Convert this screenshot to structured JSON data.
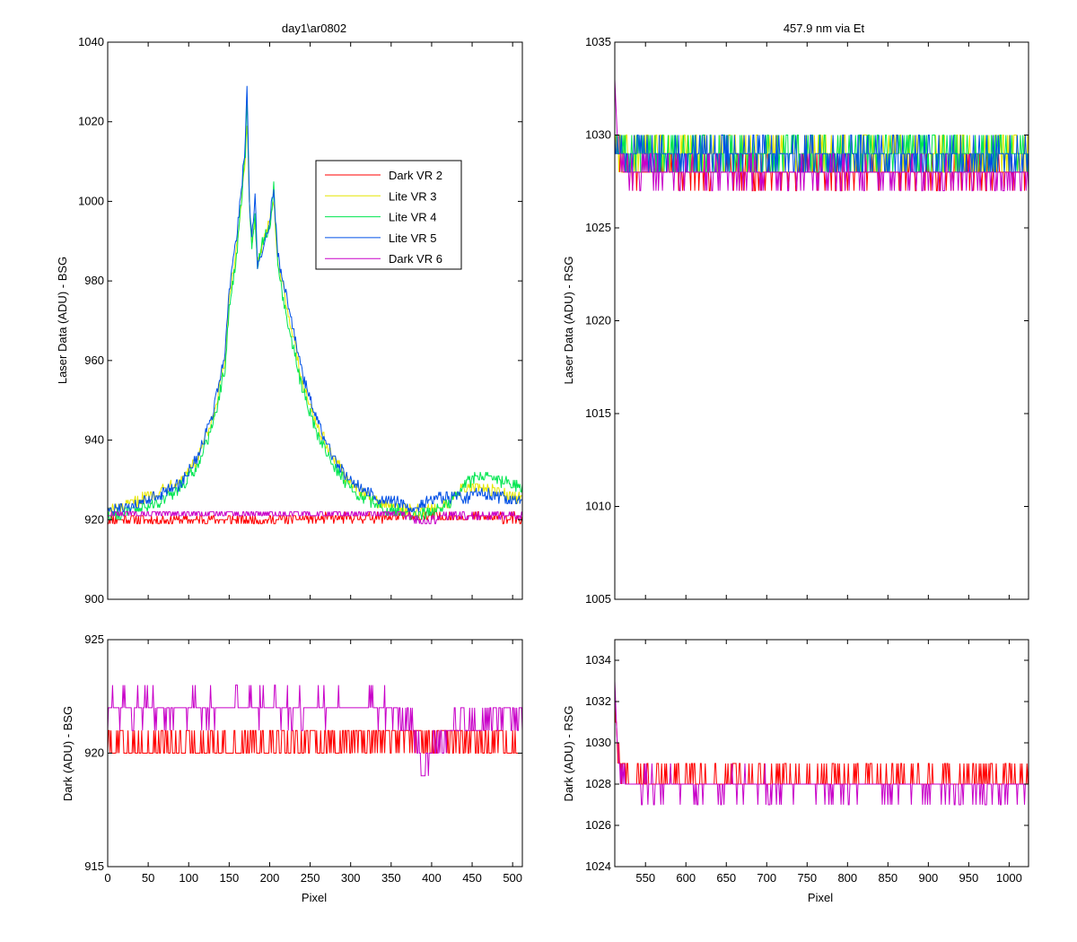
{
  "chart_data": [
    {
      "id": "top_left",
      "type": "line",
      "title": "day1\\ar0802",
      "xlabel": "",
      "ylabel": "Laser Data (ADU) - BSG",
      "xlim": [
        0,
        512
      ],
      "ylim": [
        900,
        1040
      ],
      "xticks": [
        0,
        50,
        100,
        150,
        200,
        250,
        300,
        350,
        400,
        450,
        500
      ],
      "show_xtick_labels": false,
      "yticks": [
        900,
        920,
        940,
        960,
        980,
        1000,
        1020,
        1040
      ],
      "legend": {
        "placement": "top-right",
        "entries": [
          "Dark VR 2",
          "Lite VR 3",
          "Lite VR 4",
          "Lite VR 5",
          "Dark VR 6"
        ],
        "colors": [
          "#ff0000",
          "#e6e600",
          "#00e650",
          "#0050e6",
          "#c800c8"
        ]
      },
      "series": [
        {
          "name": "Dark VR 2",
          "color": "#ff0000",
          "noise": 1.2,
          "x": [
            0,
            100,
            200,
            300,
            400,
            500,
            512
          ],
          "y": [
            920,
            920,
            920,
            920.5,
            920.8,
            920.5,
            920
          ]
        },
        {
          "name": "Lite VR 3",
          "color": "#e6e600",
          "noise": 1.5,
          "x": [
            0,
            30,
            60,
            90,
            110,
            130,
            145,
            150,
            160,
            170,
            172,
            175,
            178,
            182,
            185,
            190,
            200,
            205,
            210,
            220,
            240,
            260,
            280,
            300,
            320,
            340,
            360,
            380,
            400,
            420,
            440,
            460,
            480,
            500,
            512
          ],
          "y": [
            922,
            924,
            927,
            930,
            935,
            945,
            960,
            975,
            990,
            1010,
            1020,
            1000,
            990,
            995,
            985,
            988,
            995,
            1000,
            985,
            975,
            955,
            943,
            935,
            929,
            926,
            924,
            923,
            922,
            923,
            924,
            928,
            928,
            927,
            926,
            925
          ]
        },
        {
          "name": "Lite VR 4",
          "color": "#00e650",
          "noise": 1.5,
          "x": [
            0,
            30,
            60,
            90,
            110,
            130,
            145,
            150,
            160,
            170,
            172,
            175,
            178,
            182,
            185,
            190,
            200,
            205,
            210,
            220,
            240,
            260,
            280,
            300,
            320,
            340,
            360,
            380,
            400,
            420,
            440,
            460,
            480,
            500,
            512
          ],
          "y": [
            921,
            922,
            924,
            928,
            933,
            944,
            958,
            973,
            988,
            1012,
            1025,
            1000,
            988,
            997,
            983,
            990,
            993,
            1004,
            984,
            972,
            953,
            941,
            933,
            928,
            925,
            923,
            922,
            921,
            922,
            924,
            929,
            931,
            930,
            929,
            928
          ]
        },
        {
          "name": "Lite VR 5",
          "color": "#0050e6",
          "noise": 1.5,
          "x": [
            0,
            30,
            60,
            90,
            110,
            130,
            145,
            150,
            160,
            170,
            172,
            175,
            178,
            182,
            185,
            190,
            200,
            205,
            210,
            220,
            240,
            260,
            280,
            300,
            320,
            340,
            360,
            380,
            400,
            420,
            440,
            460,
            480,
            500,
            512
          ],
          "y": [
            922,
            923,
            926,
            929,
            935,
            947,
            962,
            978,
            992,
            1015,
            1028,
            1000,
            990,
            1002,
            983,
            987,
            995,
            1003,
            986,
            977,
            957,
            944,
            935,
            930,
            927,
            925,
            924,
            923,
            925,
            926,
            925,
            927,
            926,
            925,
            925
          ]
        },
        {
          "name": "Dark VR 6",
          "color": "#c800c8",
          "noise": 1.0,
          "x": [
            0,
            100,
            200,
            300,
            360,
            380,
            390,
            400,
            420,
            450,
            512
          ],
          "y": [
            921.5,
            921.5,
            921.5,
            921.5,
            921.5,
            920,
            919,
            920,
            921,
            921,
            921
          ]
        }
      ]
    },
    {
      "id": "top_right",
      "type": "line",
      "title": "457.9 nm via Et",
      "xlabel": "",
      "ylabel": "Laser Data (ADU) - RSG",
      "xlim": [
        512,
        1024
      ],
      "ylim": [
        1005,
        1035
      ],
      "xticks": [
        550,
        600,
        650,
        700,
        750,
        800,
        850,
        900,
        950,
        1000
      ],
      "show_xtick_labels": false,
      "yticks": [
        1005,
        1010,
        1015,
        1020,
        1025,
        1030,
        1035
      ],
      "series": [
        {
          "name": "Dark VR 2",
          "color": "#ff0000",
          "noise": 0.7,
          "x": [
            512,
            520,
            530,
            1024
          ],
          "y": [
            1030,
            1028.5,
            1028,
            1028
          ]
        },
        {
          "name": "Lite VR 3",
          "color": "#e6e600",
          "noise": 1.0,
          "x": [
            512,
            520,
            1024
          ],
          "y": [
            1029.5,
            1029,
            1029
          ]
        },
        {
          "name": "Lite VR 4",
          "color": "#00e650",
          "noise": 1.0,
          "x": [
            512,
            520,
            1024
          ],
          "y": [
            1029.5,
            1029,
            1029
          ]
        },
        {
          "name": "Lite VR 5",
          "color": "#0050e6",
          "noise": 0.9,
          "x": [
            512,
            520,
            1024
          ],
          "y": [
            1029.5,
            1029,
            1028.8
          ]
        },
        {
          "name": "Dark VR 6",
          "color": "#c800c8",
          "noise": 0.7,
          "x": [
            512,
            515,
            520,
            530,
            1024
          ],
          "y": [
            1033,
            1030,
            1028.5,
            1028,
            1027.8
          ]
        }
      ]
    },
    {
      "id": "bottom_left",
      "type": "line",
      "title": "",
      "xlabel": "Pixel",
      "ylabel": "Dark (ADU) - BSG",
      "xlim": [
        0,
        512
      ],
      "ylim": [
        915,
        925
      ],
      "xticks": [
        0,
        50,
        100,
        150,
        200,
        250,
        300,
        350,
        400,
        450,
        500
      ],
      "show_xtick_labels": true,
      "yticks": [
        915,
        920,
        925
      ],
      "series": [
        {
          "name": "Dark VR 2",
          "color": "#ff0000",
          "noise": 0.7,
          "x": [
            0,
            100,
            200,
            300,
            400,
            500,
            512
          ],
          "y": [
            920.3,
            920.3,
            920.5,
            920.6,
            920.8,
            920.4,
            920.0
          ]
        },
        {
          "name": "Dark VR 6",
          "color": "#c800c8",
          "noise": 0.6,
          "x": [
            0,
            100,
            200,
            300,
            360,
            380,
            390,
            400,
            420,
            450,
            512
          ],
          "y": [
            922,
            922,
            922,
            922,
            922,
            921,
            919,
            920,
            921,
            921.5,
            921.5
          ]
        }
      ]
    },
    {
      "id": "bottom_right",
      "type": "line",
      "title": "",
      "xlabel": "Pixel",
      "ylabel": "Dark (ADU) - RSG",
      "xlim": [
        512,
        1024
      ],
      "ylim": [
        1024,
        1035
      ],
      "xticks": [
        550,
        600,
        650,
        700,
        750,
        800,
        850,
        900,
        950,
        1000
      ],
      "show_xtick_labels": true,
      "yticks": [
        1024,
        1026,
        1028,
        1030,
        1032,
        1034
      ],
      "series": [
        {
          "name": "Dark VR 2",
          "color": "#ff0000",
          "noise": 0.6,
          "x": [
            512,
            515,
            520,
            530,
            1024
          ],
          "y": [
            1032,
            1030,
            1028.8,
            1028.2,
            1028.2
          ]
        },
        {
          "name": "Dark VR 6",
          "color": "#c800c8",
          "noise": 0.6,
          "x": [
            512,
            515,
            520,
            530,
            1024
          ],
          "y": [
            1033,
            1030,
            1028.5,
            1028,
            1027.8
          ]
        }
      ]
    }
  ]
}
